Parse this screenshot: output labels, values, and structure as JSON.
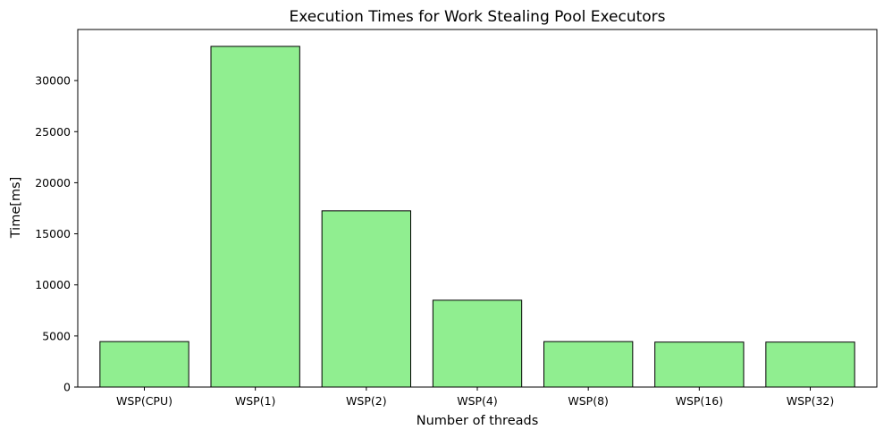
{
  "chart_data": {
    "type": "bar",
    "title": "Execution Times for Work Stealing Pool Executors",
    "xlabel": "Number of threads",
    "ylabel": "Time[ms]",
    "categories": [
      "WSP(CPU)",
      "WSP(1)",
      "WSP(2)",
      "WSP(4)",
      "WSP(8)",
      "WSP(16)",
      "WSP(32)"
    ],
    "values": [
      4450,
      33350,
      17250,
      8500,
      4450,
      4400,
      4400
    ],
    "ylim": [
      0,
      35000
    ],
    "yticks": [
      0,
      5000,
      10000,
      15000,
      20000,
      25000,
      30000
    ],
    "ytick_labels": [
      "0",
      "5000",
      "10000",
      "15000",
      "20000",
      "25000",
      "30000"
    ],
    "grid": false,
    "bar_color": "#90ee90",
    "edge_color": "#000000"
  }
}
